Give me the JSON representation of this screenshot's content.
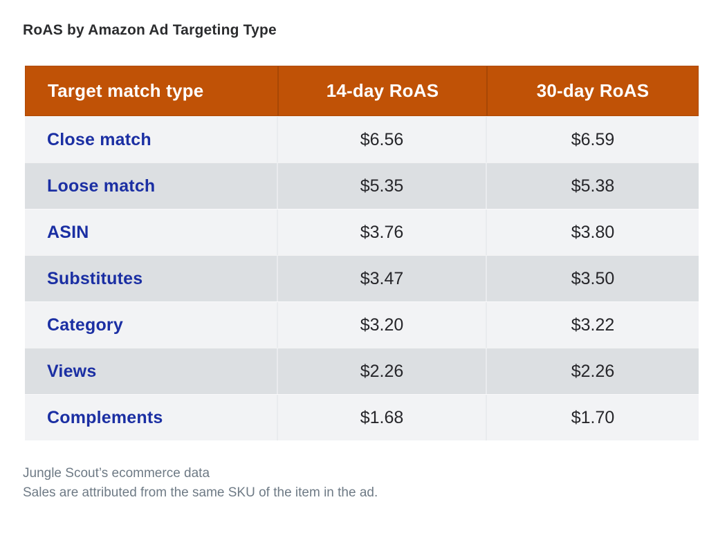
{
  "page": {
    "title": "RoAS by Amazon Ad Targeting Type"
  },
  "table": {
    "columns": [
      "Target match type",
      "14-day RoAS",
      "30-day RoAS"
    ],
    "rows": [
      [
        "Close match",
        "$6.56",
        "$6.59"
      ],
      [
        "Loose match",
        "$5.35",
        "$5.38"
      ],
      [
        "ASIN",
        "$3.76",
        "$3.80"
      ],
      [
        "Substitutes",
        "$3.47",
        "$3.50"
      ],
      [
        "Category",
        "$3.20",
        "$3.22"
      ],
      [
        "Views",
        "$2.26",
        "$2.26"
      ],
      [
        "Complements",
        "$1.68",
        "$1.70"
      ]
    ]
  },
  "footer": {
    "line1": "Jungle Scout’s ecommerce data",
    "line2": "Sales are attributed from the same SKU of the item in the ad."
  },
  "colors": {
    "header_bg": "#c05206",
    "header_text": "#ffffff",
    "label_blue": "#1b2fa3",
    "value_text": "#26262a",
    "row_light": "#f2f3f5",
    "row_dark": "#dcdfe2",
    "title_text": "#2b2c2e",
    "footer_text": "#6e7a85"
  },
  "chart_data": {
    "type": "table",
    "title": "RoAS by Amazon Ad Targeting Type",
    "columns": [
      "Target match type",
      "14-day RoAS",
      "30-day RoAS"
    ],
    "rows": [
      [
        "Close match",
        6.56,
        6.59
      ],
      [
        "Loose match",
        5.35,
        5.38
      ],
      [
        "ASIN",
        3.76,
        3.8
      ],
      [
        "Substitutes",
        3.47,
        3.5
      ],
      [
        "Category",
        3.2,
        3.22
      ],
      [
        "Views",
        2.26,
        2.26
      ],
      [
        "Complements",
        1.68,
        1.7
      ]
    ],
    "units": "USD",
    "layout_hints": {
      "header_style": "orange-bar",
      "row_striping": "alternating light/dark gray",
      "label_column_color": "blue",
      "value_alignment": "center"
    },
    "notes": [
      "Jungle Scout’s ecommerce data",
      "Sales are attributed from the same SKU of the item in the ad."
    ]
  }
}
